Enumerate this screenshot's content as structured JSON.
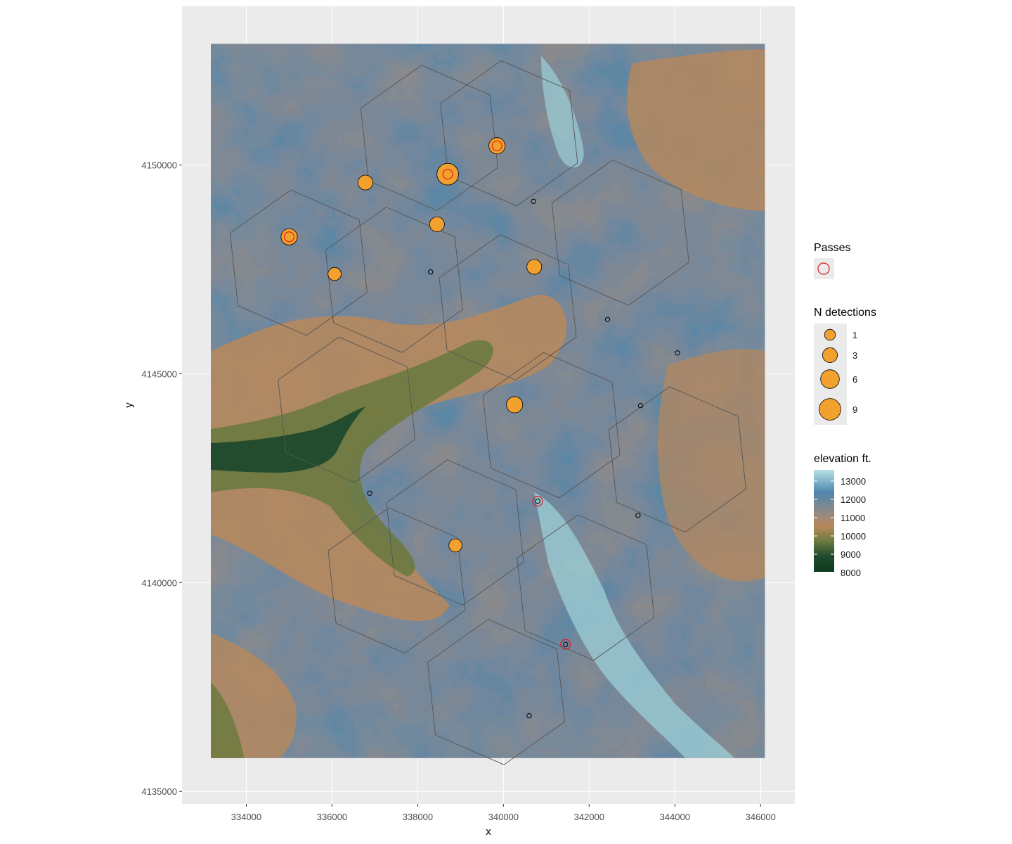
{
  "chart_data": {
    "type": "map",
    "xlabel": "x",
    "ylabel": "y",
    "xlim": [
      332500,
      346800
    ],
    "ylim": [
      4134700,
      4153800
    ],
    "raster_extent": {
      "x": [
        333100,
        346100
      ],
      "y": [
        4135800,
        4152900
      ]
    },
    "x_ticks": [
      334000,
      336000,
      338000,
      340000,
      342000,
      344000,
      346000
    ],
    "y_ticks": [
      4135000,
      4140000,
      4145000,
      4150000
    ],
    "x_tick_labels": [
      "334000",
      "336000",
      "338000",
      "340000",
      "342000",
      "344000",
      "346000"
    ],
    "y_tick_labels": [
      "4135000",
      "4140000",
      "4145000",
      "4150000"
    ],
    "grid": true,
    "hexagon_size_m": 1750,
    "hexagon_centers": [
      [
        4150760,
        340130
      ],
      [
        4146590,
        340101
      ],
      [
        4147250,
        337450
      ],
      [
        4143770,
        341120
      ],
      [
        4141200,
        338870
      ],
      [
        4148380,
        342730
      ],
      [
        4147660,
        335220
      ],
      [
        4150650,
        338270
      ],
      [
        4142950,
        344060
      ],
      [
        4139880,
        341920
      ],
      [
        4140050,
        337510
      ],
      [
        4137380,
        339830
      ],
      [
        4144140,
        336340
      ]
    ],
    "detections": [
      {
        "x": 338700,
        "y": 4149780,
        "n": 9,
        "pass": true
      },
      {
        "x": 339850,
        "y": 4150460,
        "n": 4,
        "pass": true
      },
      {
        "x": 336780,
        "y": 4149580,
        "n": 3,
        "pass": false
      },
      {
        "x": 335000,
        "y": 4148280,
        "n": 4,
        "pass": true
      },
      {
        "x": 338450,
        "y": 4148580,
        "n": 3,
        "pass": false
      },
      {
        "x": 336060,
        "y": 4147390,
        "n": 2,
        "pass": false
      },
      {
        "x": 340720,
        "y": 4147560,
        "n": 3,
        "pass": false
      },
      {
        "x": 340260,
        "y": 4144260,
        "n": 4,
        "pass": false
      },
      {
        "x": 338880,
        "y": 4140890,
        "n": 2,
        "pass": false
      },
      {
        "x": 340700,
        "y": 4149130,
        "n": 0,
        "pass": false
      },
      {
        "x": 338300,
        "y": 4147440,
        "n": 0,
        "pass": false
      },
      {
        "x": 342430,
        "y": 4146300,
        "n": 0,
        "pass": false
      },
      {
        "x": 344060,
        "y": 4145500,
        "n": 0,
        "pass": false
      },
      {
        "x": 343200,
        "y": 4144240,
        "n": 0,
        "pass": false
      },
      {
        "x": 336880,
        "y": 4142140,
        "n": 0,
        "pass": false
      },
      {
        "x": 340800,
        "y": 4141950,
        "n": 0,
        "pass": true
      },
      {
        "x": 343140,
        "y": 4141610,
        "n": 0,
        "pass": false
      },
      {
        "x": 341450,
        "y": 4138520,
        "n": 0,
        "pass": true
      },
      {
        "x": 340600,
        "y": 4136810,
        "n": 0,
        "pass": false
      }
    ]
  },
  "legend": {
    "passes_title": "Passes",
    "detections_title": "N detections",
    "detection_levels": [
      {
        "label": "1",
        "n": 1
      },
      {
        "label": "3",
        "n": 3
      },
      {
        "label": "6",
        "n": 6
      },
      {
        "label": "9",
        "n": 9
      }
    ],
    "elevation_title": "elevation ft.",
    "elevation_labels": [
      "13000",
      "12000",
      "11000",
      "10000",
      "9000",
      "8000"
    ]
  },
  "colors": {
    "panel_bg": "#ebebeb",
    "grid": "#ffffff",
    "point_fill": "#f2a12e",
    "pass_ring": "#e0161b",
    "hex_line": "#555555",
    "elev_8000": "#1d4a2c",
    "elev_9000": "#6d7a40",
    "elev_10000": "#b8885a",
    "elev_11000": "#8a8a8c",
    "elev_12000": "#4f86ad",
    "elev_13000": "#9cd0d8"
  }
}
